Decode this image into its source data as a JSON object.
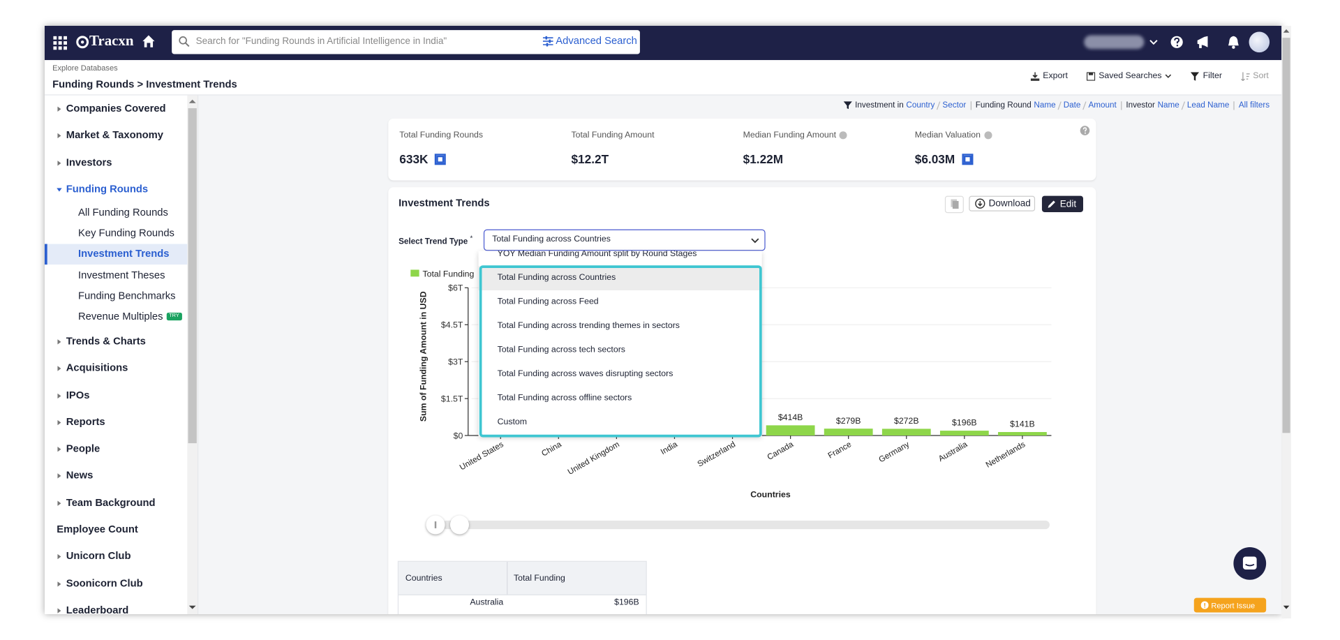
{
  "nav": {
    "logo": "Tracxn",
    "search_placeholder": "Search for \"Funding Rounds in Artificial Intelligence in India\"",
    "advanced_search": "Advanced Search"
  },
  "breadcrumb": {
    "section": "Explore Databases",
    "path": "Funding Rounds > Investment Trends"
  },
  "toolbar": [
    "Export",
    "Saved Searches",
    "Filter",
    "Sort"
  ],
  "sidebar": [
    {
      "label": "Companies Covered"
    },
    {
      "label": "Market & Taxonomy"
    },
    {
      "label": "Investors"
    },
    {
      "label": "Funding Rounds",
      "expanded": true,
      "children": [
        {
          "label": "All Funding Rounds"
        },
        {
          "label": "Key Funding Rounds"
        },
        {
          "label": "Investment Trends",
          "selected": true
        },
        {
          "label": "Investment Theses"
        },
        {
          "label": "Funding Benchmarks"
        },
        {
          "label": "Revenue Multiples",
          "badge": "TRY"
        }
      ]
    },
    {
      "label": "Trends & Charts"
    },
    {
      "label": "Acquisitions"
    },
    {
      "label": "IPOs"
    },
    {
      "label": "Reports"
    },
    {
      "label": "People"
    },
    {
      "label": "News"
    },
    {
      "label": "Team Background"
    },
    {
      "label": "Employee Count",
      "expandable": false
    },
    {
      "label": "Unicorn Club"
    },
    {
      "label": "Soonicorn Club"
    },
    {
      "label": "Leaderboard"
    }
  ],
  "filters": [
    {
      "label": "Investment in",
      "links": [
        "Country",
        "Sector"
      ]
    },
    {
      "label": "Funding Round",
      "links": [
        "Name",
        "Date",
        "Amount"
      ]
    },
    {
      "label": "Investor",
      "links": [
        "Name",
        "Lead Name"
      ]
    },
    {
      "links": [
        "All filters"
      ]
    }
  ],
  "stats": [
    {
      "label": "Total Funding Rounds",
      "value": "633K",
      "link_icon": true
    },
    {
      "label": "Total Funding Amount",
      "value": "$12.2T"
    },
    {
      "label": "Median Funding Amount",
      "value": "$1.22M",
      "info": true
    },
    {
      "label": "Median Valuation",
      "value": "$6.03M",
      "info": true,
      "link_icon": true
    }
  ],
  "panel": {
    "title": "Investment Trends",
    "download": "Download",
    "edit": "Edit",
    "select_label": "Select Trend Type",
    "required": "*",
    "selected": "Total Funding across Countries",
    "options": [
      "YOY Median Funding Amount split by Round Stages",
      "Total Funding across Countries",
      "Total Funding across Feed",
      "Total Funding across trending themes in sectors",
      "Total Funding across tech sectors",
      "Total Funding across waves disrupting sectors",
      "Total Funding across offline sectors",
      "Custom"
    ],
    "highlighted_option": 1
  },
  "chart_data": {
    "type": "bar",
    "x_label": "Countries",
    "y_label": "Sum of Funding Amount in USD",
    "categories": [
      "United States",
      "China",
      "United Kingdom",
      "India",
      "Switzerland",
      "Canada",
      "France",
      "Germany",
      "Australia",
      "Netherlands"
    ],
    "series": [
      {
        "name": "Total Funding",
        "color": "#8ed64a",
        "values": [
          null,
          null,
          null,
          null,
          null,
          414000000000,
          279000000000,
          272000000000,
          196000000000,
          141000000000
        ],
        "value_labels": [
          null,
          null,
          null,
          null,
          null,
          "$414B",
          "$279B",
          "$272B",
          "$196B",
          "$141B"
        ]
      }
    ],
    "ylim": [
      0,
      6000000000000
    ],
    "yticks": [
      {
        "value": 0,
        "label": "$0"
      },
      {
        "value": 1500000000000,
        "label": "$1.5T"
      },
      {
        "value": 3000000000000,
        "label": "$3T"
      },
      {
        "value": 4500000000000,
        "label": "$4.5T"
      },
      {
        "value": 6000000000000,
        "label": "$6T"
      }
    ],
    "grid": true
  },
  "table": {
    "headers": [
      "Countries",
      "Total Funding"
    ],
    "rows": [
      [
        "Australia",
        "$196B"
      ]
    ]
  },
  "report_issue": "Report Issue"
}
